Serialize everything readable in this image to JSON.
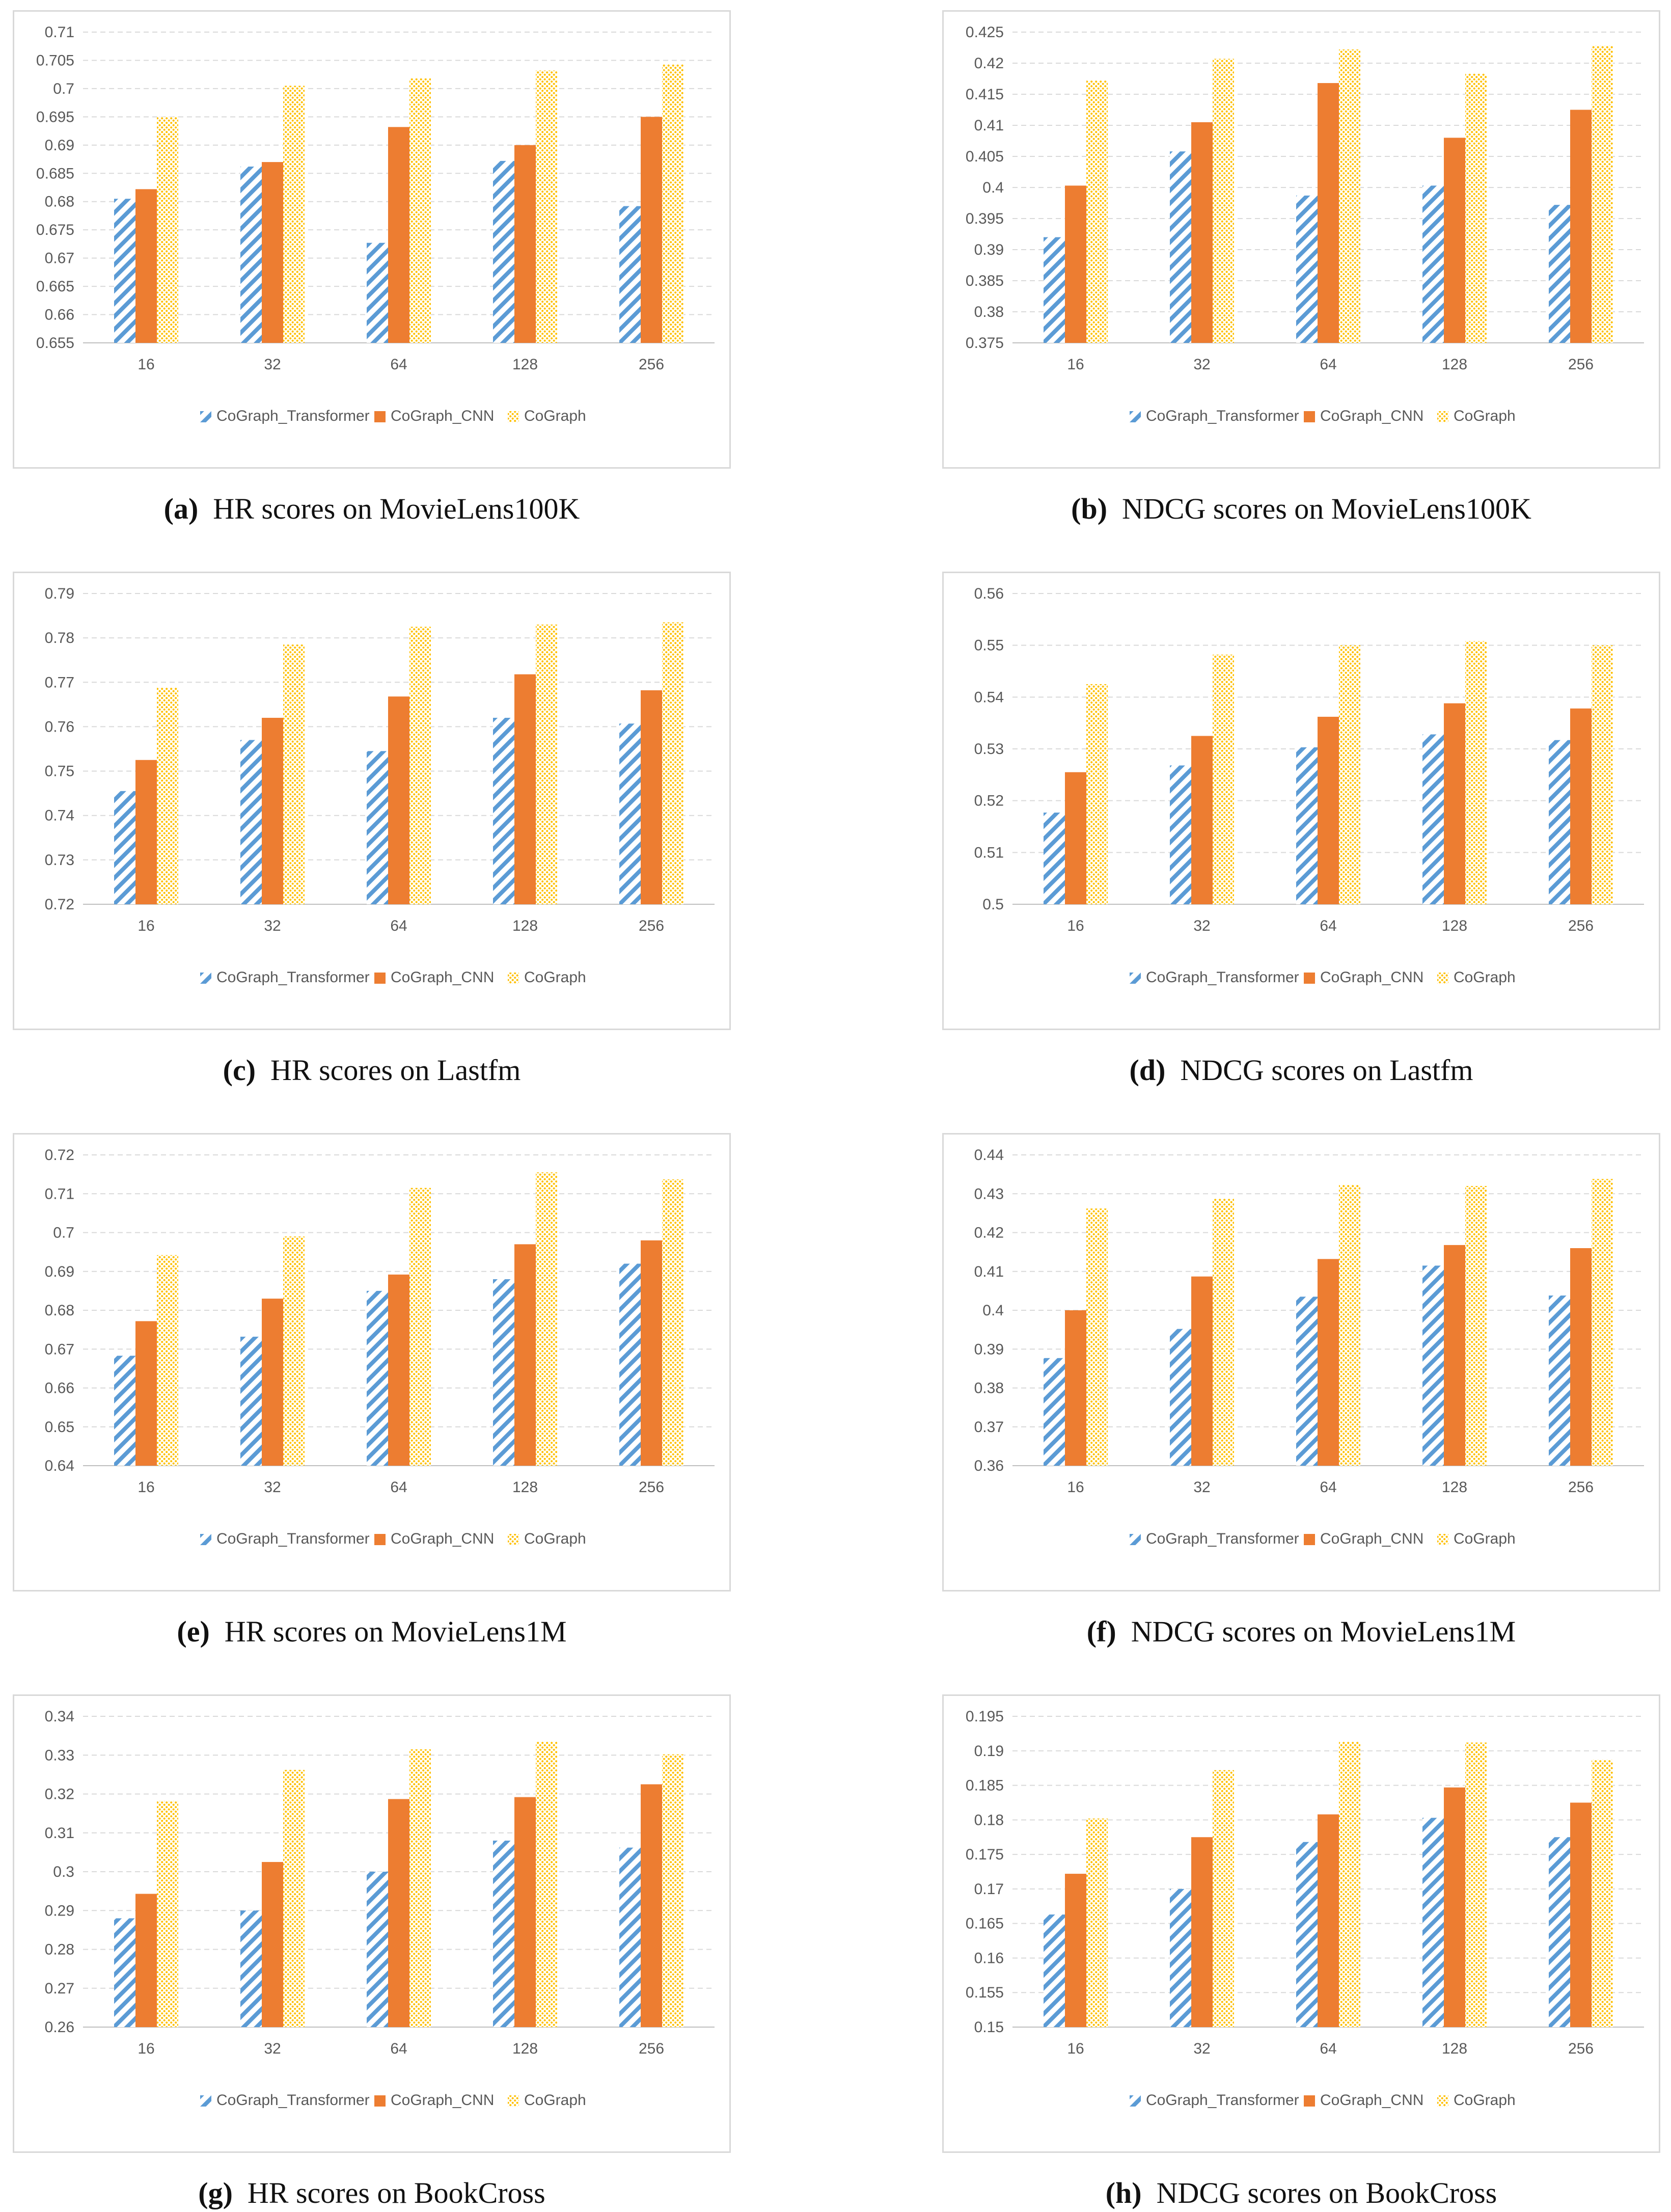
{
  "figure": {
    "legend": [
      "CoGraph_Transformer",
      "CoGraph_CNN",
      "CoGraph"
    ],
    "colors": {
      "transformer": "#5b9bd5",
      "cnn": "#ed7d31",
      "cograph": "#ffc000"
    }
  },
  "chart_data": [
    {
      "type": "bar",
      "id": "a",
      "caption_label": "(a)",
      "caption_text": "HR scores on MovieLens100K",
      "categories": [
        "16",
        "32",
        "64",
        "128",
        "256"
      ],
      "ylim": [
        0.655,
        0.71
      ],
      "step": 0.005,
      "yticks": [
        "0.655",
        "0.66",
        "0.665",
        "0.67",
        "0.675",
        "0.68",
        "0.685",
        "0.69",
        "0.695",
        "0.7",
        "0.705",
        "0.71"
      ],
      "series": [
        {
          "name": "CoGraph_Transformer",
          "values": [
            0.6805,
            0.6862,
            0.6727,
            0.6872,
            0.6792
          ]
        },
        {
          "name": "CoGraph_CNN",
          "values": [
            0.6822,
            0.687,
            0.6932,
            0.69,
            0.695
          ]
        },
        {
          "name": "CoGraph",
          "values": [
            0.695,
            0.7005,
            0.7018,
            0.7032,
            0.7043
          ]
        }
      ]
    },
    {
      "type": "bar",
      "id": "b",
      "caption_label": "(b)",
      "caption_text": "NDCG scores on MovieLens100K",
      "categories": [
        "16",
        "32",
        "64",
        "128",
        "256"
      ],
      "ylim": [
        0.375,
        0.425
      ],
      "step": 0.005,
      "yticks": [
        "0.375",
        "0.38",
        "0.385",
        "0.39",
        "0.395",
        "0.4",
        "0.405",
        "0.41",
        "0.415",
        "0.42",
        "0.425"
      ],
      "series": [
        {
          "name": "CoGraph_Transformer",
          "values": [
            0.392,
            0.4058,
            0.3987,
            0.4003,
            0.3972
          ]
        },
        {
          "name": "CoGraph_CNN",
          "values": [
            0.4003,
            0.4105,
            0.4168,
            0.408,
            0.4125
          ]
        },
        {
          "name": "CoGraph",
          "values": [
            0.4172,
            0.4207,
            0.4222,
            0.4183,
            0.4228
          ]
        }
      ]
    },
    {
      "type": "bar",
      "id": "c",
      "caption_label": "(c)",
      "caption_text": "HR scores on Lastfm",
      "categories": [
        "16",
        "32",
        "64",
        "128",
        "256"
      ],
      "ylim": [
        0.72,
        0.79
      ],
      "step": 0.01,
      "yticks": [
        "0.72",
        "0.73",
        "0.74",
        "0.75",
        "0.76",
        "0.77",
        "0.78",
        "0.79"
      ],
      "series": [
        {
          "name": "CoGraph_Transformer",
          "values": [
            0.7455,
            0.757,
            0.7545,
            0.762,
            0.7607
          ]
        },
        {
          "name": "CoGraph_CNN",
          "values": [
            0.7525,
            0.762,
            0.7668,
            0.7718,
            0.7682
          ]
        },
        {
          "name": "CoGraph",
          "values": [
            0.7688,
            0.7785,
            0.7825,
            0.783,
            0.7835
          ]
        }
      ]
    },
    {
      "type": "bar",
      "id": "d",
      "caption_label": "(d)",
      "caption_text": "NDCG scores on Lastfm",
      "categories": [
        "16",
        "32",
        "64",
        "128",
        "256"
      ],
      "ylim": [
        0.5,
        0.56
      ],
      "step": 0.01,
      "yticks": [
        "0.5",
        "0.51",
        "0.52",
        "0.53",
        "0.54",
        "0.55",
        "0.56"
      ],
      "series": [
        {
          "name": "CoGraph_Transformer",
          "values": [
            0.5177,
            0.5268,
            0.5303,
            0.5328,
            0.5317
          ]
        },
        {
          "name": "CoGraph_CNN",
          "values": [
            0.5255,
            0.5325,
            0.5362,
            0.5388,
            0.5378
          ]
        },
        {
          "name": "CoGraph",
          "values": [
            0.5425,
            0.5482,
            0.55,
            0.5508,
            0.55
          ]
        }
      ]
    },
    {
      "type": "bar",
      "id": "e",
      "caption_label": "(e)",
      "caption_text": "HR scores on MovieLens1M",
      "categories": [
        "16",
        "32",
        "64",
        "128",
        "256"
      ],
      "ylim": [
        0.64,
        0.72
      ],
      "step": 0.01,
      "yticks": [
        "0.64",
        "0.65",
        "0.66",
        "0.67",
        "0.68",
        "0.69",
        "0.7",
        "0.71",
        "0.72"
      ],
      "series": [
        {
          "name": "CoGraph_Transformer",
          "values": [
            0.6683,
            0.6732,
            0.685,
            0.688,
            0.692
          ]
        },
        {
          "name": "CoGraph_CNN",
          "values": [
            0.6772,
            0.683,
            0.6892,
            0.697,
            0.698
          ]
        },
        {
          "name": "CoGraph",
          "values": [
            0.6942,
            0.699,
            0.7115,
            0.7155,
            0.7137
          ]
        }
      ]
    },
    {
      "type": "bar",
      "id": "f",
      "caption_label": "(f)",
      "caption_text": "NDCG scores on MovieLens1M",
      "categories": [
        "16",
        "32",
        "64",
        "128",
        "256"
      ],
      "ylim": [
        0.36,
        0.44
      ],
      "step": 0.01,
      "yticks": [
        "0.36",
        "0.37",
        "0.38",
        "0.39",
        "0.4",
        "0.41",
        "0.42",
        "0.43",
        "0.44"
      ],
      "series": [
        {
          "name": "CoGraph_Transformer",
          "values": [
            0.3877,
            0.3952,
            0.4035,
            0.4115,
            0.4038
          ]
        },
        {
          "name": "CoGraph_CNN",
          "values": [
            0.4,
            0.4087,
            0.4132,
            0.4168,
            0.416
          ]
        },
        {
          "name": "CoGraph",
          "values": [
            0.4262,
            0.4287,
            0.4323,
            0.432,
            0.4338
          ]
        }
      ]
    },
    {
      "type": "bar",
      "id": "g",
      "caption_label": "(g)",
      "caption_text": "HR scores on BookCross",
      "categories": [
        "16",
        "32",
        "64",
        "128",
        "256"
      ],
      "ylim": [
        0.26,
        0.34
      ],
      "step": 0.01,
      "yticks": [
        "0.26",
        "0.27",
        "0.28",
        "0.29",
        "0.3",
        "0.31",
        "0.32",
        "0.33",
        "0.34"
      ],
      "series": [
        {
          "name": "CoGraph_Transformer",
          "values": [
            0.288,
            0.29,
            0.3,
            0.308,
            0.3062
          ]
        },
        {
          "name": "CoGraph_CNN",
          "values": [
            0.2943,
            0.3025,
            0.3187,
            0.3192,
            0.3225
          ]
        },
        {
          "name": "CoGraph",
          "values": [
            0.3182,
            0.3262,
            0.3315,
            0.3335,
            0.3302
          ]
        }
      ]
    },
    {
      "type": "bar",
      "id": "h",
      "caption_label": "(h)",
      "caption_text": "NDCG scores on BookCross",
      "categories": [
        "16",
        "32",
        "64",
        "128",
        "256"
      ],
      "ylim": [
        0.15,
        0.195
      ],
      "step": 0.005,
      "yticks": [
        "0.15",
        "0.155",
        "0.16",
        "0.165",
        "0.17",
        "0.175",
        "0.18",
        "0.185",
        "0.19",
        "0.195"
      ],
      "series": [
        {
          "name": "CoGraph_Transformer",
          "values": [
            0.1663,
            0.17,
            0.1768,
            0.1803,
            0.1775
          ]
        },
        {
          "name": "CoGraph_CNN",
          "values": [
            0.1722,
            0.1775,
            0.1808,
            0.1847,
            0.1825
          ]
        },
        {
          "name": "CoGraph",
          "values": [
            0.1802,
            0.1872,
            0.1913,
            0.1912,
            0.1887
          ]
        }
      ]
    }
  ]
}
